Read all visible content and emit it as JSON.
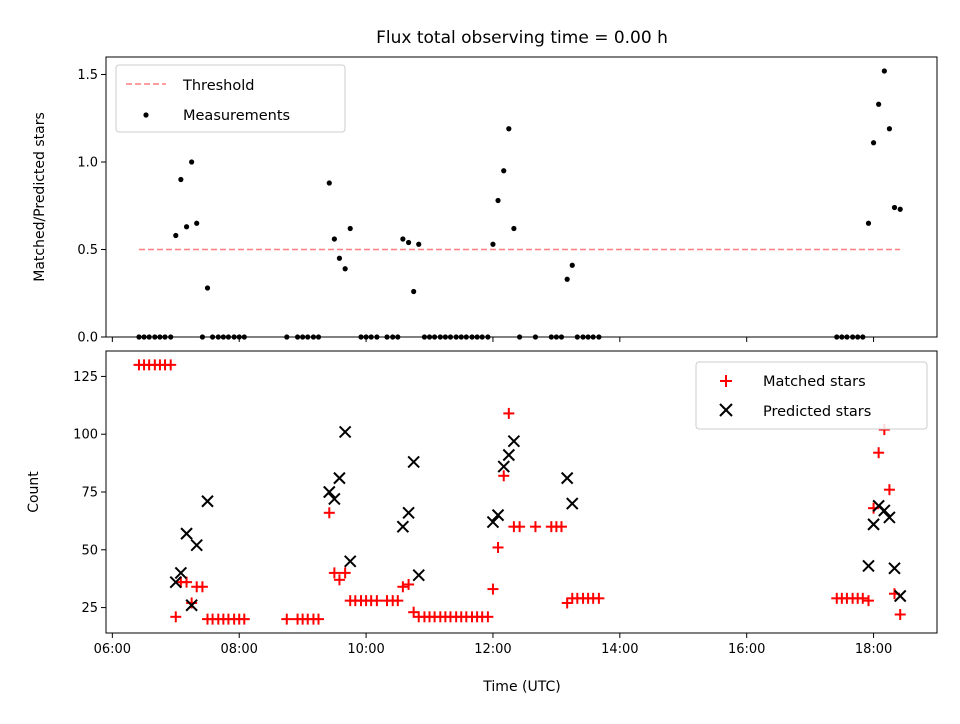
{
  "chart_data": [
    {
      "type": "scatter",
      "title": "Flux total observing time = 0.00 h",
      "xlabel": "",
      "ylabel": "Matched/Predicted stars",
      "xlim": [
        5.9,
        19.0
      ],
      "ylim": [
        0,
        1.6
      ],
      "yticks": [
        0.0,
        0.5,
        1.0,
        1.5
      ],
      "ytick_labels": [
        "0.0",
        "0.5",
        "1.0",
        "1.5"
      ],
      "legend": {
        "placement": "top-left",
        "entries": [
          "Threshold",
          "Measurements"
        ]
      },
      "threshold": {
        "name": "Threshold",
        "y": 0.5,
        "x_start": 6.42,
        "x_end": 18.42,
        "color": "#ff7f7f",
        "style": "dashed"
      },
      "series": [
        {
          "name": "Measurements",
          "color": "#000000",
          "marker": "dot",
          "points": [
            [
              6.42,
              0
            ],
            [
              6.5,
              0
            ],
            [
              6.58,
              0
            ],
            [
              6.67,
              0
            ],
            [
              6.75,
              0
            ],
            [
              6.83,
              0
            ],
            [
              6.92,
              0
            ],
            [
              7.0,
              0.58
            ],
            [
              7.08,
              0.9
            ],
            [
              7.17,
              0.63
            ],
            [
              7.25,
              1.0
            ],
            [
              7.33,
              0.65
            ],
            [
              7.5,
              0.28
            ],
            [
              7.42,
              0
            ],
            [
              7.58,
              0
            ],
            [
              7.67,
              0
            ],
            [
              7.75,
              0
            ],
            [
              7.83,
              0
            ],
            [
              7.92,
              0
            ],
            [
              8.0,
              0
            ],
            [
              8.08,
              0
            ],
            [
              8.75,
              0
            ],
            [
              8.92,
              0
            ],
            [
              9.0,
              0
            ],
            [
              9.08,
              0
            ],
            [
              9.17,
              0
            ],
            [
              9.25,
              0
            ],
            [
              9.42,
              0.88
            ],
            [
              9.5,
              0.56
            ],
            [
              9.58,
              0.45
            ],
            [
              9.67,
              0.39
            ],
            [
              9.75,
              0.62
            ],
            [
              9.92,
              0
            ],
            [
              10.0,
              0
            ],
            [
              10.08,
              0
            ],
            [
              10.17,
              0
            ],
            [
              10.33,
              0
            ],
            [
              10.42,
              0
            ],
            [
              10.5,
              0
            ],
            [
              10.58,
              0.56
            ],
            [
              10.67,
              0.54
            ],
            [
              10.75,
              0.26
            ],
            [
              10.83,
              0.53
            ],
            [
              10.92,
              0
            ],
            [
              11.0,
              0
            ],
            [
              11.08,
              0
            ],
            [
              11.17,
              0
            ],
            [
              11.25,
              0
            ],
            [
              11.33,
              0
            ],
            [
              11.42,
              0
            ],
            [
              11.5,
              0
            ],
            [
              11.58,
              0
            ],
            [
              11.67,
              0
            ],
            [
              11.75,
              0
            ],
            [
              11.83,
              0
            ],
            [
              11.92,
              0
            ],
            [
              12.0,
              0.53
            ],
            [
              12.08,
              0.78
            ],
            [
              12.17,
              0.95
            ],
            [
              12.25,
              1.19
            ],
            [
              12.33,
              0.62
            ],
            [
              12.42,
              0
            ],
            [
              12.67,
              0
            ],
            [
              12.92,
              0
            ],
            [
              13.0,
              0
            ],
            [
              13.08,
              0
            ],
            [
              13.17,
              0.33
            ],
            [
              13.25,
              0.41
            ],
            [
              13.33,
              0
            ],
            [
              13.42,
              0
            ],
            [
              13.5,
              0
            ],
            [
              13.58,
              0
            ],
            [
              13.67,
              0
            ],
            [
              17.42,
              0
            ],
            [
              17.5,
              0
            ],
            [
              17.58,
              0
            ],
            [
              17.67,
              0
            ],
            [
              17.75,
              0
            ],
            [
              17.83,
              0
            ],
            [
              17.92,
              0.65
            ],
            [
              18.0,
              1.11
            ],
            [
              18.08,
              1.33
            ],
            [
              18.17,
              1.52
            ],
            [
              18.25,
              1.19
            ],
            [
              18.33,
              0.74
            ],
            [
              18.42,
              0.73
            ]
          ]
        }
      ]
    },
    {
      "type": "scatter",
      "title": "",
      "xlabel": "Time (UTC)",
      "ylabel": "Count",
      "xlim": [
        5.9,
        19.0
      ],
      "ylim": [
        14,
        136
      ],
      "xticks": [
        6,
        8,
        10,
        12,
        14,
        16,
        18
      ],
      "xtick_labels": [
        "06:00",
        "08:00",
        "10:00",
        "12:00",
        "14:00",
        "16:00",
        "18:00"
      ],
      "yticks": [
        25,
        50,
        75,
        100,
        125
      ],
      "ytick_labels": [
        "25",
        "50",
        "75",
        "100",
        "125"
      ],
      "legend": {
        "placement": "top-right",
        "entries": [
          "Matched stars",
          "Predicted stars"
        ]
      },
      "series": [
        {
          "name": "Matched stars",
          "color": "#ff0000",
          "marker": "plus",
          "points": [
            [
              6.42,
              130
            ],
            [
              6.5,
              130
            ],
            [
              6.58,
              130
            ],
            [
              6.67,
              130
            ],
            [
              6.75,
              130
            ],
            [
              6.83,
              130
            ],
            [
              6.92,
              130
            ],
            [
              7.0,
              21
            ],
            [
              7.08,
              36
            ],
            [
              7.17,
              36
            ],
            [
              7.25,
              27
            ],
            [
              7.33,
              34
            ],
            [
              7.42,
              34
            ],
            [
              7.5,
              20
            ],
            [
              7.58,
              20
            ],
            [
              7.67,
              20
            ],
            [
              7.75,
              20
            ],
            [
              7.83,
              20
            ],
            [
              7.92,
              20
            ],
            [
              8.0,
              20
            ],
            [
              8.08,
              20
            ],
            [
              8.75,
              20
            ],
            [
              8.92,
              20
            ],
            [
              9.0,
              20
            ],
            [
              9.08,
              20
            ],
            [
              9.17,
              20
            ],
            [
              9.25,
              20
            ],
            [
              9.42,
              66
            ],
            [
              9.5,
              40
            ],
            [
              9.58,
              37
            ],
            [
              9.67,
              40
            ],
            [
              9.75,
              28
            ],
            [
              9.83,
              28
            ],
            [
              9.92,
              28
            ],
            [
              10.0,
              28
            ],
            [
              10.08,
              28
            ],
            [
              10.17,
              28
            ],
            [
              10.33,
              28
            ],
            [
              10.42,
              28
            ],
            [
              10.5,
              28
            ],
            [
              10.58,
              34
            ],
            [
              10.67,
              35
            ],
            [
              10.75,
              23
            ],
            [
              10.83,
              21
            ],
            [
              10.92,
              21
            ],
            [
              11.0,
              21
            ],
            [
              11.08,
              21
            ],
            [
              11.17,
              21
            ],
            [
              11.25,
              21
            ],
            [
              11.33,
              21
            ],
            [
              11.42,
              21
            ],
            [
              11.5,
              21
            ],
            [
              11.58,
              21
            ],
            [
              11.67,
              21
            ],
            [
              11.75,
              21
            ],
            [
              11.83,
              21
            ],
            [
              11.92,
              21
            ],
            [
              12.0,
              33
            ],
            [
              12.08,
              51
            ],
            [
              12.17,
              82
            ],
            [
              12.25,
              109
            ],
            [
              12.33,
              60
            ],
            [
              12.42,
              60
            ],
            [
              12.67,
              60
            ],
            [
              12.92,
              60
            ],
            [
              13.0,
              60
            ],
            [
              13.08,
              60
            ],
            [
              13.17,
              27
            ],
            [
              13.25,
              29
            ],
            [
              13.33,
              29
            ],
            [
              13.42,
              29
            ],
            [
              13.5,
              29
            ],
            [
              13.58,
              29
            ],
            [
              13.67,
              29
            ],
            [
              17.42,
              29
            ],
            [
              17.5,
              29
            ],
            [
              17.58,
              29
            ],
            [
              17.67,
              29
            ],
            [
              17.75,
              29
            ],
            [
              17.83,
              29
            ],
            [
              17.92,
              28
            ],
            [
              18.0,
              68
            ],
            [
              18.08,
              92
            ],
            [
              18.17,
              102
            ],
            [
              18.25,
              76
            ],
            [
              18.33,
              31
            ],
            [
              18.42,
              22
            ]
          ]
        },
        {
          "name": "Predicted stars",
          "color": "#000000",
          "marker": "x",
          "points": [
            [
              7.0,
              36
            ],
            [
              7.08,
              40
            ],
            [
              7.17,
              57
            ],
            [
              7.25,
              26
            ],
            [
              7.33,
              52
            ],
            [
              7.5,
              71
            ],
            [
              9.42,
              75
            ],
            [
              9.5,
              72
            ],
            [
              9.58,
              81
            ],
            [
              9.67,
              101
            ],
            [
              9.75,
              45
            ],
            [
              10.58,
              60
            ],
            [
              10.67,
              66
            ],
            [
              10.75,
              88
            ],
            [
              10.83,
              39
            ],
            [
              12.0,
              62
            ],
            [
              12.08,
              65
            ],
            [
              12.17,
              86
            ],
            [
              12.25,
              91
            ],
            [
              12.33,
              97
            ],
            [
              13.17,
              81
            ],
            [
              13.25,
              70
            ],
            [
              17.92,
              43
            ],
            [
              18.0,
              61
            ],
            [
              18.08,
              69
            ],
            [
              18.17,
              67
            ],
            [
              18.25,
              64
            ],
            [
              18.33,
              42
            ],
            [
              18.42,
              30
            ]
          ]
        }
      ]
    }
  ]
}
